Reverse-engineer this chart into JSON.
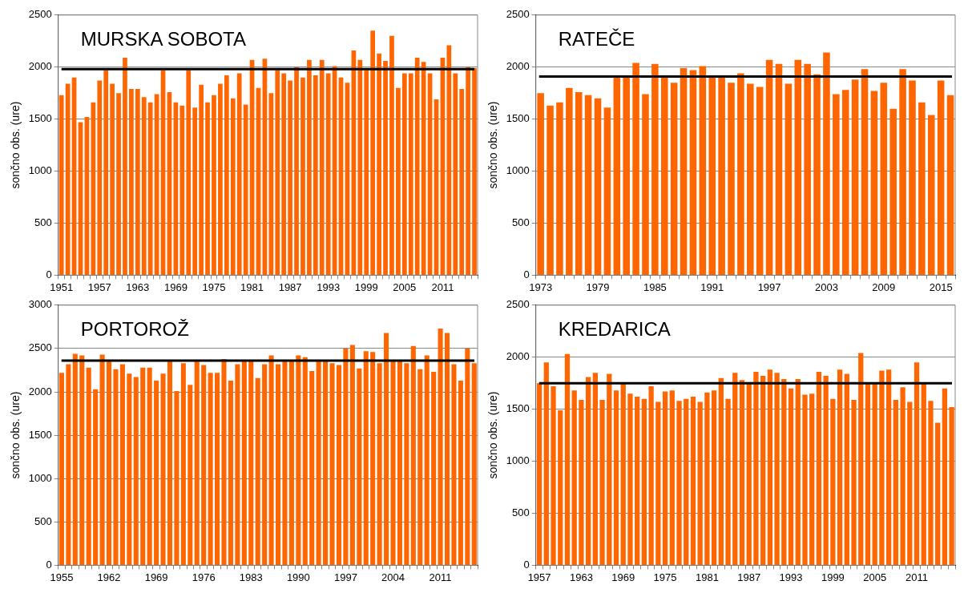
{
  "chart_data": [
    {
      "type": "bar",
      "title": "MURSKA SOBOTA",
      "ylabel": "sončno obs. (ure)",
      "color": "#ff6600",
      "grid": "y",
      "categories": [
        "1951",
        null,
        null,
        null,
        null,
        null,
        "1957",
        null,
        null,
        null,
        null,
        null,
        "1963",
        null,
        null,
        null,
        null,
        null,
        "1969",
        null,
        null,
        null,
        null,
        null,
        "1975",
        null,
        null,
        null,
        null,
        null,
        "1981",
        null,
        null,
        null,
        null,
        null,
        "1987",
        null,
        null,
        null,
        null,
        null,
        "1993",
        null,
        null,
        null,
        null,
        null,
        "1999",
        null,
        null,
        null,
        null,
        null,
        "2005",
        null,
        null,
        null,
        null,
        null,
        "2011",
        null,
        null,
        null,
        null,
        null
      ],
      "values": [
        1730,
        1840,
        1900,
        1470,
        1520,
        1660,
        1870,
        1970,
        1840,
        1750,
        2090,
        1790,
        1790,
        1710,
        1660,
        1740,
        1970,
        1760,
        1660,
        1630,
        1970,
        1610,
        1830,
        1660,
        1730,
        1840,
        1920,
        1700,
        1940,
        1640,
        2070,
        1800,
        2080,
        1750,
        1970,
        1940,
        1870,
        2000,
        1900,
        2070,
        1920,
        2070,
        1940,
        2010,
        1900,
        1850,
        2160,
        2070,
        1970,
        2350,
        2130,
        2060,
        2300,
        1800,
        1940,
        1940,
        2090,
        2050,
        1940,
        1690,
        2090,
        2210,
        1940,
        1790,
        2000,
        1990
      ],
      "ylim": [
        0,
        2500
      ],
      "yticks": [
        0,
        500,
        1000,
        1500,
        2000,
        2500
      ],
      "ref_lines": [
        {
          "axis": "y",
          "value": 1980,
          "color": "#000000"
        }
      ]
    },
    {
      "type": "bar",
      "title": "RATEČE",
      "ylabel": "sončno obs. (ure)",
      "color": "#ff6600",
      "grid": "y",
      "categories": [
        "1973",
        null,
        null,
        null,
        null,
        null,
        "1979",
        null,
        null,
        null,
        null,
        null,
        "1985",
        null,
        null,
        null,
        null,
        null,
        "1991",
        null,
        null,
        null,
        null,
        null,
        "1997",
        null,
        null,
        null,
        null,
        null,
        "2003",
        null,
        null,
        null,
        null,
        null,
        "2009",
        null,
        null,
        null,
        null,
        null,
        "2015",
        null
      ],
      "values": [
        1750,
        1630,
        1660,
        1800,
        1760,
        1730,
        1700,
        1610,
        1920,
        1920,
        2040,
        1740,
        2030,
        1920,
        1850,
        1990,
        1970,
        2010,
        1900,
        1910,
        1850,
        1940,
        1840,
        1810,
        2070,
        2030,
        1840,
        2070,
        2030,
        1930,
        2140,
        1740,
        1780,
        1880,
        1980,
        1770,
        1850,
        1600,
        1980,
        1870,
        1660,
        1540,
        1870,
        1730
      ],
      "ylim": [
        0,
        2500
      ],
      "yticks": [
        0,
        500,
        1000,
        1500,
        2000,
        2500
      ],
      "ref_lines": [
        {
          "axis": "y",
          "value": 1910,
          "color": "#000000"
        }
      ]
    },
    {
      "type": "bar",
      "title": "PORTOROŽ",
      "ylabel": "sončno obs. (ure)",
      "color": "#ff6600",
      "grid": "y",
      "categories": [
        "1955",
        null,
        null,
        null,
        null,
        null,
        null,
        "1962",
        null,
        null,
        null,
        null,
        null,
        null,
        "1969",
        null,
        null,
        null,
        null,
        null,
        null,
        "1976",
        null,
        null,
        null,
        null,
        null,
        null,
        "1983",
        null,
        null,
        null,
        null,
        null,
        null,
        "1990",
        null,
        null,
        null,
        null,
        null,
        null,
        "1997",
        null,
        null,
        null,
        null,
        null,
        null,
        "2004",
        null,
        null,
        null,
        null,
        null,
        null,
        "2011",
        null,
        null,
        null,
        null,
        null
      ],
      "values": [
        2220,
        2320,
        2440,
        2420,
        2280,
        2030,
        2430,
        2360,
        2260,
        2320,
        2210,
        2170,
        2280,
        2280,
        2130,
        2210,
        2360,
        2010,
        2330,
        2080,
        2360,
        2310,
        2220,
        2220,
        2380,
        2130,
        2320,
        2360,
        2360,
        2160,
        2320,
        2420,
        2320,
        2360,
        2360,
        2420,
        2400,
        2240,
        2360,
        2360,
        2330,
        2310,
        2500,
        2540,
        2270,
        2470,
        2460,
        2330,
        2680,
        2360,
        2360,
        2330,
        2530,
        2260,
        2420,
        2230,
        2730,
        2680,
        2320,
        2130,
        2500,
        2330
      ],
      "ylim": [
        0,
        3000
      ],
      "yticks": [
        0,
        500,
        1000,
        1500,
        2000,
        2500,
        3000
      ],
      "ref_lines": [
        {
          "axis": "y",
          "value": 2360,
          "color": "#000000"
        }
      ]
    },
    {
      "type": "bar",
      "title": "KREDARICA",
      "ylabel": "sončno obs. (ure)",
      "color": "#ff6600",
      "grid": "y",
      "categories": [
        "1957",
        null,
        null,
        null,
        null,
        null,
        "1963",
        null,
        null,
        null,
        null,
        null,
        "1969",
        null,
        null,
        null,
        null,
        null,
        "1975",
        null,
        null,
        null,
        null,
        null,
        "1981",
        null,
        null,
        null,
        null,
        null,
        "1987",
        null,
        null,
        null,
        null,
        null,
        "1993",
        null,
        null,
        null,
        null,
        null,
        "1999",
        null,
        null,
        null,
        null,
        null,
        "2005",
        null,
        null,
        null,
        null,
        null,
        "2011",
        null,
        null,
        null,
        null,
        null
      ],
      "values": [
        1750,
        1950,
        1720,
        1490,
        2030,
        1680,
        1590,
        1810,
        1850,
        1590,
        1840,
        1680,
        1750,
        1650,
        1620,
        1600,
        1720,
        1570,
        1670,
        1680,
        1580,
        1600,
        1620,
        1570,
        1660,
        1680,
        1800,
        1600,
        1850,
        1780,
        1750,
        1860,
        1820,
        1880,
        1850,
        1790,
        1700,
        1790,
        1640,
        1650,
        1860,
        1820,
        1600,
        1880,
        1840,
        1590,
        2040,
        1750,
        1750,
        1870,
        1880,
        1590,
        1710,
        1570,
        1950,
        1750,
        1580,
        1370,
        1700,
        1520
      ],
      "ylim": [
        0,
        2500
      ],
      "yticks": [
        0,
        500,
        1000,
        1500,
        2000,
        2500
      ],
      "ref_lines": [
        {
          "axis": "y",
          "value": 1750,
          "color": "#000000"
        }
      ]
    }
  ]
}
